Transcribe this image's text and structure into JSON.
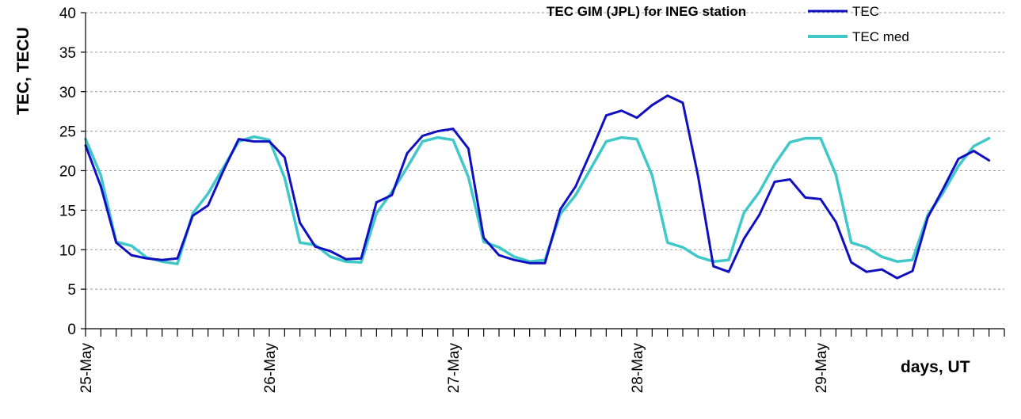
{
  "chart_data": {
    "type": "line",
    "title": "TEC GIM (JPL) for INEG station",
    "ylabel": "TEC, TECU",
    "xlabel": "days, UT",
    "ylim": [
      0,
      40
    ],
    "yticks": [
      0,
      5,
      10,
      15,
      20,
      25,
      30,
      35,
      40
    ],
    "x_start": "25-May",
    "x_step_hours": 2,
    "date_labels": [
      "25-May",
      "26-May",
      "27-May",
      "28-May",
      "29-May"
    ],
    "grid": "horizontal-dashed",
    "legend_position": "top-right",
    "series": [
      {
        "name": "TEC",
        "color": "#1010C0",
        "values": [
          23.2,
          18.0,
          10.9,
          9.3,
          8.9,
          8.7,
          8.9,
          14.3,
          15.6,
          20.0,
          24.0,
          23.7,
          23.7,
          21.7,
          13.4,
          10.4,
          9.8,
          8.8,
          8.9,
          16.0,
          16.9,
          22.2,
          24.4,
          25.0,
          25.3,
          22.8,
          11.5,
          9.3,
          8.7,
          8.3,
          8.3,
          15.1,
          18.0,
          22.4,
          27.0,
          27.6,
          26.7,
          28.3,
          29.5,
          28.6,
          19.3,
          7.9,
          7.2,
          11.4,
          14.4,
          18.6,
          18.9,
          16.6,
          16.4,
          13.5,
          8.4,
          7.2,
          7.5,
          6.4,
          7.3,
          14.1,
          17.7,
          21.5,
          22.5,
          21.3
        ]
      },
      {
        "name": "TEC med",
        "color": "#40C8C8",
        "values": [
          24.0,
          19.4,
          11.0,
          10.5,
          9.0,
          8.5,
          8.2,
          14.6,
          17.1,
          20.4,
          23.7,
          24.3,
          23.9,
          19.1,
          10.9,
          10.6,
          9.1,
          8.5,
          8.4,
          14.6,
          17.3,
          20.4,
          23.7,
          24.2,
          23.9,
          19.2,
          11.0,
          10.3,
          9.1,
          8.5,
          8.7,
          14.5,
          16.9,
          20.3,
          23.7,
          24.2,
          24.0,
          19.4,
          10.9,
          10.3,
          9.1,
          8.5,
          8.7,
          14.7,
          17.3,
          20.8,
          23.6,
          24.1,
          24.1,
          19.5,
          10.9,
          10.3,
          9.1,
          8.5,
          8.7,
          14.4,
          17.2,
          20.6,
          23.1,
          24.1
        ]
      }
    ]
  }
}
